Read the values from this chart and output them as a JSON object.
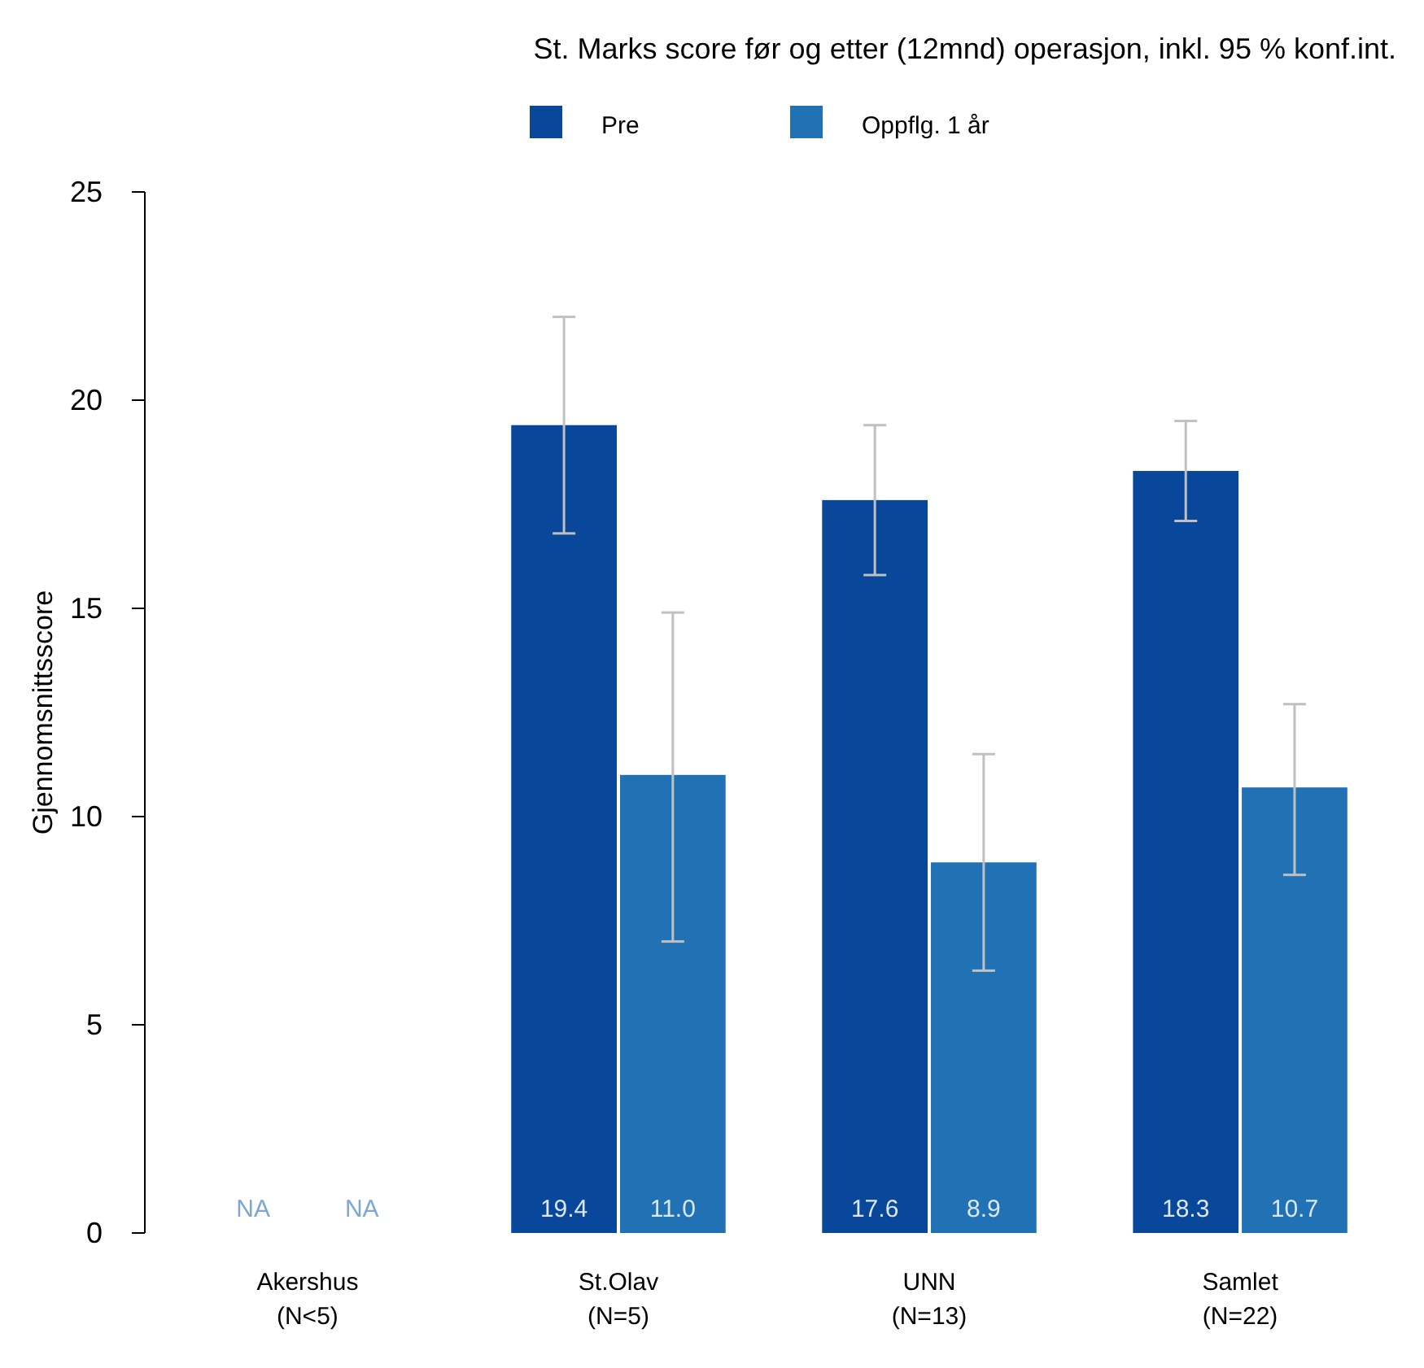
{
  "chart_data": {
    "type": "bar",
    "title": "St. Marks score før og etter (12mnd) operasjon, inkl. 95 % konf.int.",
    "ylabel": "Gjennomsnittsscore",
    "categories": [
      "Akershus\n(N<5)",
      "St.Olav\n(N=5)",
      "UNN\n(N=13)",
      "Samlet\n(N=22)"
    ],
    "series": [
      {
        "name": "Pre",
        "color": "#08479a",
        "values": [
          null,
          19.4,
          17.6,
          18.3
        ],
        "errors": [
          null,
          [
            16.8,
            22.0
          ],
          [
            15.8,
            19.4
          ],
          [
            17.1,
            19.5
          ]
        ],
        "value_labels": [
          "NA",
          "19.4",
          "17.6",
          "18.3"
        ]
      },
      {
        "name": "Oppflg. 1 år",
        "color": "#2171b5",
        "values": [
          null,
          11.0,
          8.9,
          10.7
        ],
        "errors": [
          null,
          [
            7.0,
            14.9
          ],
          [
            6.3,
            11.5
          ],
          [
            8.6,
            12.7
          ]
        ],
        "value_labels": [
          "NA",
          "11.0",
          "8.9",
          "10.7"
        ]
      }
    ],
    "ylim": [
      0,
      25
    ],
    "yticks": [
      0,
      5,
      10,
      15,
      20,
      25
    ],
    "legend": "top",
    "grid": false
  }
}
